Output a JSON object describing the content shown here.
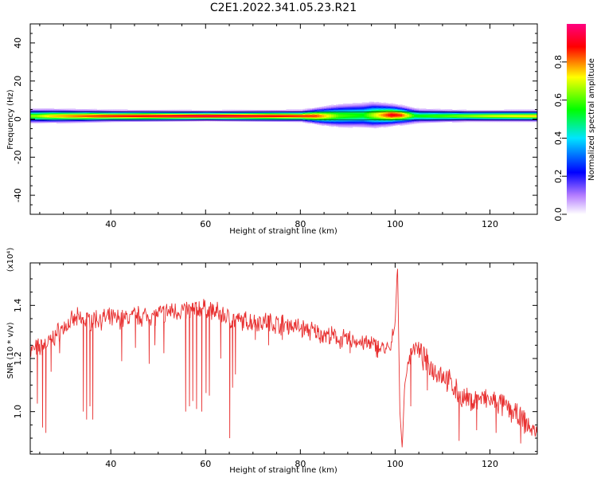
{
  "title": "C2E1.2022.341.05.23.R21",
  "chart_data": [
    {
      "type": "heatmap",
      "xlabel": "Height of straight line (km)",
      "ylabel": "Frequency (Hz)",
      "xlim": [
        23,
        130
      ],
      "ylim": [
        -50,
        50
      ],
      "xticks": [
        40,
        60,
        80,
        100,
        120
      ],
      "yticks": [
        -40,
        -20,
        0,
        20,
        40
      ],
      "colorbar": {
        "label": "Normalized spectral amplitude",
        "range": [
          0.0,
          1.0
        ],
        "ticks": [
          "0.0",
          "0.2",
          "0.4",
          "0.6",
          "0.8"
        ],
        "colors": [
          "#ffffff",
          "#b47cff",
          "#0000ff",
          "#00e5ff",
          "#00ff00",
          "#ffff00",
          "#ff0000",
          "#ff0080"
        ]
      },
      "band": {
        "center_hz": [
          [
            24,
            1.5
          ],
          [
            60,
            1.5
          ],
          [
            85,
            1.5
          ],
          [
            95,
            2
          ],
          [
            100,
            2
          ],
          [
            105,
            1.5
          ],
          [
            130,
            1.5
          ]
        ],
        "halfwidth_hz": [
          [
            24,
            2.5
          ],
          [
            40,
            2
          ],
          [
            60,
            1.8
          ],
          [
            80,
            2
          ],
          [
            88,
            4
          ],
          [
            95,
            4.5
          ],
          [
            100,
            3.5
          ],
          [
            105,
            2.5
          ],
          [
            115,
            2
          ],
          [
            130,
            2
          ]
        ],
        "peak_amplitude": [
          [
            24,
            0.65
          ],
          [
            27,
            0.75
          ],
          [
            35,
            0.85
          ],
          [
            45,
            0.9
          ],
          [
            60,
            0.95
          ],
          [
            75,
            0.9
          ],
          [
            83,
            0.85
          ],
          [
            88,
            0.6
          ],
          [
            93,
            0.55
          ],
          [
            99,
            0.9
          ],
          [
            101,
            0.85
          ],
          [
            104,
            0.55
          ],
          [
            110,
            0.6
          ],
          [
            120,
            0.7
          ],
          [
            130,
            0.75
          ]
        ]
      }
    },
    {
      "type": "line",
      "xlabel": "Height of straight line (km)",
      "ylabel": "SNR (10 * v/v)",
      "yscale_label": "(x10⁴)",
      "xlim": [
        23,
        130
      ],
      "ylim": [
        0.84,
        1.56
      ],
      "xticks": [
        40,
        60,
        80,
        100,
        120
      ],
      "yticks": [
        "1.0",
        "1.2",
        "1.4"
      ],
      "color": "#e83030",
      "x": [
        23,
        25,
        27,
        29,
        31,
        33,
        35,
        37,
        39,
        41,
        43,
        45,
        47,
        49,
        51,
        53,
        55,
        57,
        59,
        61,
        63,
        65,
        67,
        69,
        71,
        73,
        75,
        77,
        79,
        81,
        83,
        85,
        87,
        89,
        91,
        93,
        95,
        97,
        99,
        100,
        100.5,
        101,
        101.5,
        102,
        103,
        104,
        106,
        108,
        110,
        112,
        114,
        116,
        118,
        120,
        122,
        124,
        126,
        128,
        130
      ],
      "y": [
        1.23,
        1.24,
        1.26,
        1.3,
        1.33,
        1.35,
        1.34,
        1.35,
        1.35,
        1.35,
        1.35,
        1.36,
        1.36,
        1.36,
        1.37,
        1.38,
        1.38,
        1.38,
        1.39,
        1.38,
        1.37,
        1.35,
        1.34,
        1.34,
        1.34,
        1.34,
        1.33,
        1.33,
        1.32,
        1.31,
        1.3,
        1.29,
        1.28,
        1.27,
        1.27,
        1.26,
        1.25,
        1.24,
        1.23,
        1.33,
        1.56,
        1.0,
        0.86,
        1.1,
        1.2,
        1.25,
        1.2,
        1.16,
        1.14,
        1.1,
        1.05,
        1.04,
        1.05,
        1.04,
        1.03,
        1.01,
        0.98,
        0.95,
        0.91
      ],
      "dropouts": [
        {
          "x": 24.5,
          "y": 1.03
        },
        {
          "x": 25.6,
          "y": 0.94
        },
        {
          "x": 26.3,
          "y": 0.92
        },
        {
          "x": 27.4,
          "y": 1.15
        },
        {
          "x": 29.2,
          "y": 1.22
        },
        {
          "x": 34.2,
          "y": 1.0
        },
        {
          "x": 34.9,
          "y": 0.97
        },
        {
          "x": 35.6,
          "y": 1.02
        },
        {
          "x": 36.2,
          "y": 0.97
        },
        {
          "x": 42.3,
          "y": 1.19
        },
        {
          "x": 45.2,
          "y": 1.24
        },
        {
          "x": 48.1,
          "y": 1.18
        },
        {
          "x": 49.3,
          "y": 1.25
        },
        {
          "x": 51.2,
          "y": 1.22
        },
        {
          "x": 55.8,
          "y": 1.0
        },
        {
          "x": 56.6,
          "y": 1.02
        },
        {
          "x": 57.3,
          "y": 1.04
        },
        {
          "x": 58.1,
          "y": 1.01
        },
        {
          "x": 59.2,
          "y": 1.0
        },
        {
          "x": 60.1,
          "y": 1.07
        },
        {
          "x": 60.8,
          "y": 1.06
        },
        {
          "x": 63.2,
          "y": 1.2
        },
        {
          "x": 65.1,
          "y": 0.9
        },
        {
          "x": 65.7,
          "y": 1.09
        },
        {
          "x": 66.3,
          "y": 1.14
        },
        {
          "x": 70.5,
          "y": 1.27
        },
        {
          "x": 73.3,
          "y": 1.25
        },
        {
          "x": 76.2,
          "y": 1.27
        },
        {
          "x": 90.5,
          "y": 1.22
        },
        {
          "x": 96.4,
          "y": 1.22
        },
        {
          "x": 103.3,
          "y": 1.02
        },
        {
          "x": 106.8,
          "y": 1.08
        },
        {
          "x": 113.5,
          "y": 0.89
        },
        {
          "x": 117.2,
          "y": 0.93
        },
        {
          "x": 121.3,
          "y": 0.92
        },
        {
          "x": 126.5,
          "y": 0.88
        }
      ]
    }
  ]
}
